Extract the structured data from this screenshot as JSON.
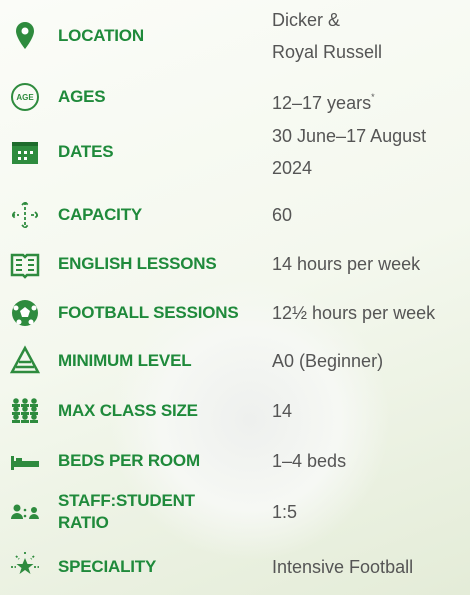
{
  "table": {
    "rows": [
      {
        "label": [
          "LOCATION"
        ],
        "value": [
          "Dicker &",
          "Royal Russell"
        ]
      },
      {
        "label": [
          "AGES"
        ],
        "value": [
          "12–17 years"
        ],
        "marker": "*"
      },
      {
        "label": [
          "DATES"
        ],
        "value": [
          "30 June–17 August",
          "2024"
        ]
      },
      {
        "label": [
          "CAPACITY"
        ],
        "value": [
          "60"
        ]
      },
      {
        "label": [
          "ENGLISH LESSONS"
        ],
        "value": [
          "14 hours per week"
        ]
      },
      {
        "label": [
          "FOOTBALL SESSIONS"
        ],
        "value": [
          "12½ hours per week"
        ]
      },
      {
        "label": [
          "MINIMUM LEVEL"
        ],
        "value": [
          "A0 (Beginner)"
        ]
      },
      {
        "label": [
          "MAX CLASS SIZE"
        ],
        "value": [
          "14"
        ]
      },
      {
        "label": [
          "BEDS PER ROOM"
        ],
        "value": [
          "1–4 beds"
        ]
      },
      {
        "label": [
          "STAFF:STUDENT",
          "RATIO"
        ],
        "value": [
          "1:5"
        ]
      },
      {
        "label": [
          "SPECIALITY"
        ],
        "value": [
          "Intensive Football"
        ]
      }
    ],
    "age_icon_text": "AGE"
  }
}
